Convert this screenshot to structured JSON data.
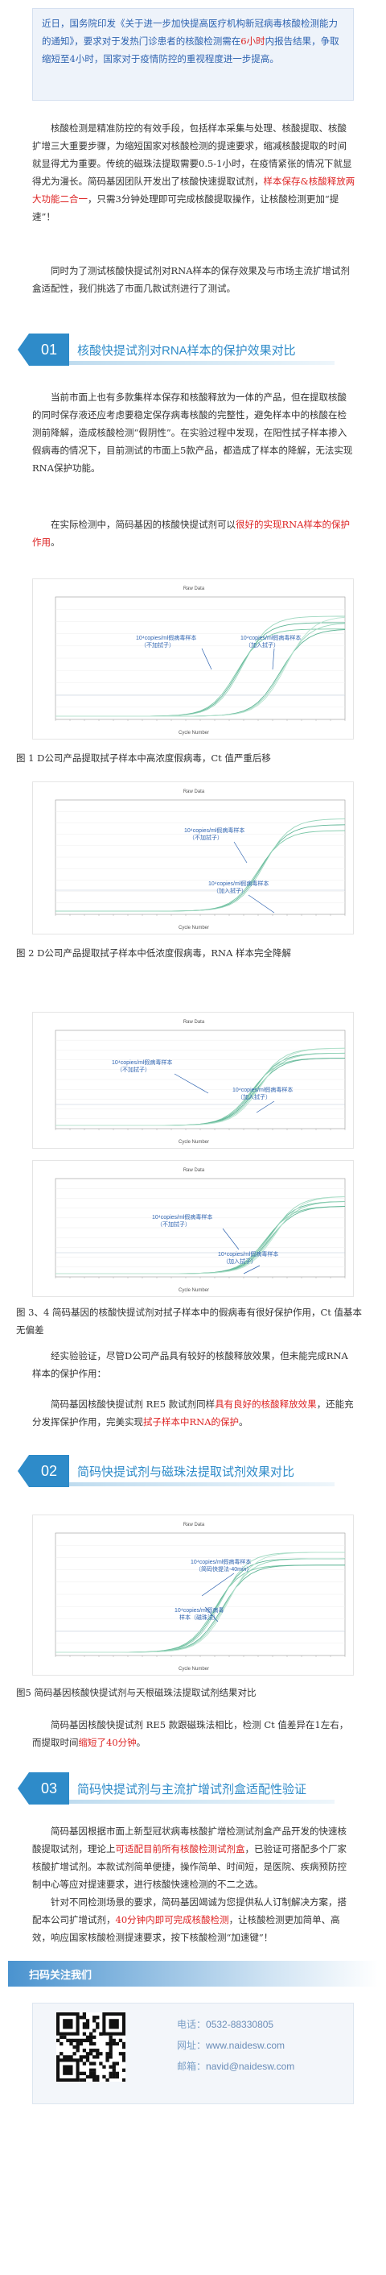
{
  "intro": {
    "text_a": "近日，国务院印发《关于进一步加快提高医疗机构新冠病毒核酸检测能力的通知》，要求对于发热门诊患者的核酸检测需在",
    "text_hl": "6小时",
    "text_b": "内报告结果，争取缩短至4小时，国家对于疫情防控的重视程度进一步提高。"
  },
  "p1": {
    "a": "核酸检测是精准防控的有效手段，包括样本采集与处理、核酸提取、核酸扩增三大重要步骤，为缩短国家对核酸检测的提速要求，缩减核酸提取的时间就显得尤为重要。传统的磁珠法提取需要0.5-1小时，在疫情紧张的情况下就显得尤为漫长。简码基因团队开发出了核酸快速提取试剂，",
    "red": "样本保存&核酸释放两大功能二合一",
    "b": "，只需3分钟处理即可完成核酸提取操作，让核酸检测更加“提速”！"
  },
  "p2": "同时为了测试核酸快提试剂对RNA样本的保存效果及与市场主流扩增试剂盒适配性，我们挑选了市面几款试剂进行了测试。",
  "sec1": {
    "num": "01",
    "title": "核酸快提试剂对RNA样本的保护效果对比"
  },
  "p3": "当前市面上也有多款集样本保存和核酸释放为一体的产品，但在提取核酸的同时保存液还应考虑要稳定保存病毒核酸的完整性，避免样本中的核酸在检测前降解，造成核酸检测“假阴性”。在实验过程中发现，在阳性拭子样本掺入假病毒的情况下，目前测试的市面上5款产品，都造成了样本的降解，无法实现RNA保护功能。",
  "p4": {
    "a": "在实际检测中，简码基因的核酸快提试剂可以",
    "red": "很好的实现RNA样本的保护作用",
    "b": "。"
  },
  "charts": {
    "c1": {
      "title": "Raw Data",
      "label1": "10⁴copies/ml假病毒样本\n（不加拭子）",
      "label2": "10⁴copies/ml假病毒样本\n（加入拭子）"
    },
    "c2": {
      "title": "Raw Data",
      "label1": "10⁴copies/ml假病毒样本\n（不加拭子）",
      "label2": "10⁴copies/ml假病毒样本\n（加入拭子）"
    },
    "c3": {
      "title": "Raw Data",
      "label1": "10⁴copies/ml假病毒样本\n（不加拭子）",
      "label2": "10⁴copies/ml假病毒样本\n（加入拭子）"
    },
    "c4": {
      "title": "Raw Data",
      "label1": "10⁴copies/ml假病毒样本\n（不加拭子）",
      "label2": "10⁴copies/ml假病毒样本\n（加入拭子）"
    },
    "c5": {
      "title": "Raw Data",
      "label1": "10⁴copies/ml假病毒样本\n（简码快提法-40min）",
      "label2": "10⁴copies/ml假病毒\n样本（磁珠法）"
    },
    "xlabel": "Cycle Number"
  },
  "cap1": "图 1 D公司产品提取拭子样本中高浓度假病毒，Ct 值严重后移",
  "cap2": "图 2 D公司产品提取拭子样本中低浓度假病毒，RNA 样本完全降解",
  "cap3": "图 3、4 简码基因的核酸快提试剂对拭子样本中的假病毒有很好保护作用，Ct 值基本无偏差",
  "p5": "经实验验证，尽管D公司产品具有较好的核酸释放效果，但未能完成RNA 样本的保护作用：",
  "p6": {
    "a": "简码基因核酸快提试剂 RE5 款试剂同样",
    "red": "具有良好的核酸释放效果",
    "b": "，还能充分发挥保护作用，完美实现",
    "red2": "拭子样本中RNA的保护",
    "c": "。"
  },
  "sec2": {
    "num": "02",
    "title": "简码快提试剂与磁珠法提取试剂效果对比"
  },
  "cap5": "图5 简码基因核酸快提试剂与天根磁珠法提取试剂结果对比",
  "p7": {
    "a": "简码基因核酸快提试剂 RE5 款跟磁珠法相比，检测 Ct 值差异在1左右，而提取时间",
    "red": "缩短了40分钟",
    "b": "。"
  },
  "sec3": {
    "num": "03",
    "title": "简码快提试剂与主流扩增试剂盒适配性验证"
  },
  "p8": {
    "a": "简码基因根据市面上新型冠状病毒核酸扩增检测试剂盒产品开发的快速核酸提取试剂，理论上",
    "red": "可适配目前所有核酸检测试剂盒",
    "b": "，已验证可搭配多个厂家核酸扩增试剂。本款试剂简单便捷，操作简单、时间短，是医院、疾病预防控制中心等应对提速要求，进行核酸快速检测的不二之选。"
  },
  "p9": {
    "a": "针对不同检测场景的要求，简码基因竭诚为您提供私人订制解决方案，搭配本公司扩增试剂，",
    "red": "40分钟内即可完成核酸检测",
    "b": "，让核酸检测更加简单、高效，响应国家核酸检测提速要求，按下核酸检测“加速键”！"
  },
  "footer": {
    "head": "扫码关注我们",
    "qr_label": "",
    "tel_k": "电话：",
    "tel_v": "0532-88330805",
    "web_k": "网址：",
    "web_v": "www.naidesw.com",
    "mail_k": "邮箱：",
    "mail_v": "navid@naidesw.com"
  }
}
